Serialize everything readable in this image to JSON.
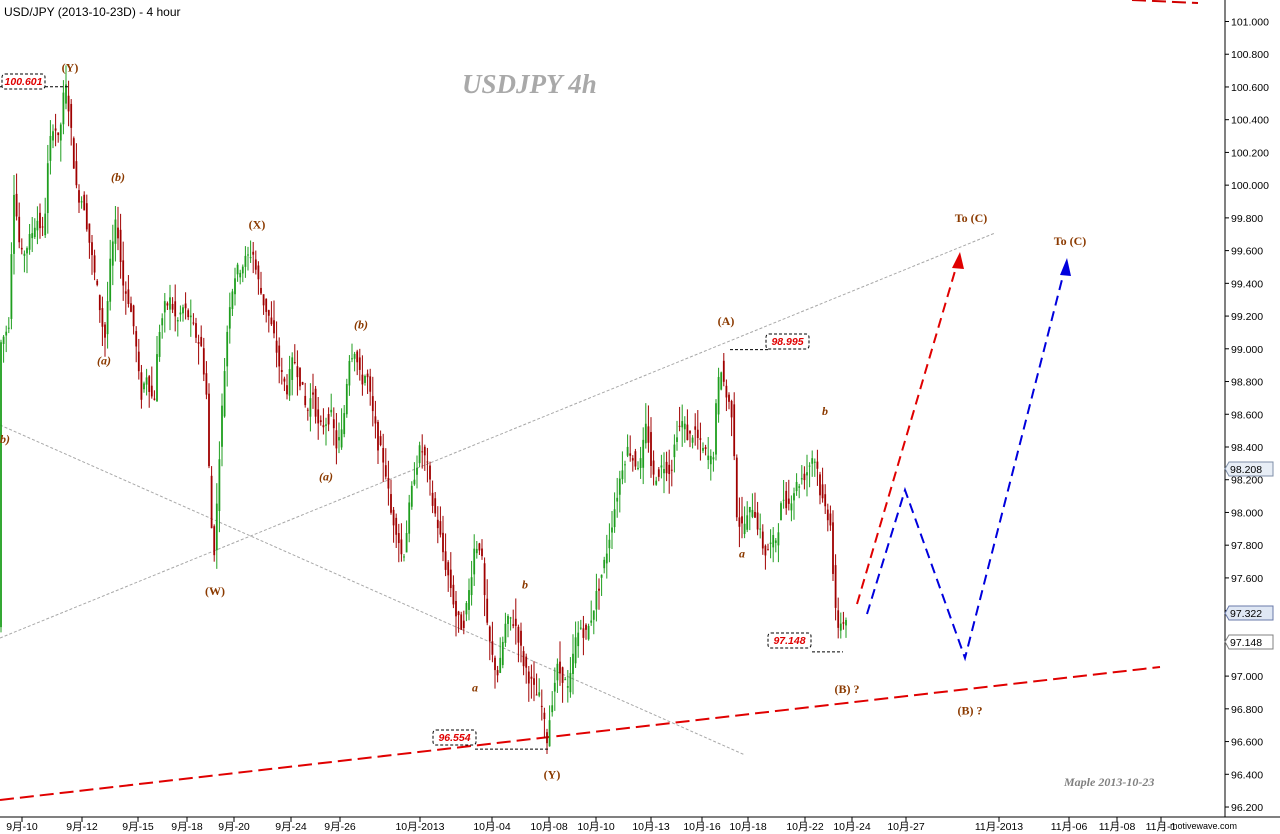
{
  "chart_data": {
    "type": "candlestick",
    "title": "USD/JPY (2013-10-23D) - 4 hour",
    "watermark": "USDJPY  4h",
    "signature": "Maple  2013-10-23",
    "source": "motivewave.com",
    "y_axis": {
      "range": [
        96.1,
        101.15
      ],
      "position": "right",
      "ticks": [
        "101.000",
        "100.800",
        "100.600",
        "100.400",
        "100.200",
        "100.000",
        "99.800",
        "99.600",
        "99.400",
        "99.200",
        "99.000",
        "98.800",
        "98.600",
        "98.400",
        "98.200",
        "98.000",
        "97.800",
        "97.600",
        "97.400",
        "97.200",
        "97.000",
        "96.800",
        "96.600",
        "96.400",
        "96.200"
      ],
      "current_price": "98.208",
      "last_close": "97.322",
      "marked_low": "97.148"
    },
    "x_axis": {
      "ticks": [
        "9月-10",
        "9月-12",
        "9月-15",
        "9月-18",
        "9月-20",
        "9月-24",
        "9月-26",
        "10月-2013",
        "10月-04",
        "10月-08",
        "10月-10",
        "10月-13",
        "10月-16",
        "10月-18",
        "10月-22",
        "10月-24",
        "10月-27",
        "11月-2013",
        "11月-06",
        "11月-08",
        "11月-1"
      ]
    },
    "colors": {
      "up": "#1f9e1f",
      "down": "#a00000",
      "forecast_red": "#e00000",
      "forecast_blue": "#0000dd",
      "wave_label": "#8b3a00",
      "level_text": "#e00000"
    },
    "price_path": [
      [
        0,
        99.0
      ],
      [
        10,
        99.15
      ],
      [
        15,
        100.0
      ],
      [
        22,
        99.55
      ],
      [
        30,
        99.65
      ],
      [
        38,
        99.8
      ],
      [
        45,
        99.7
      ],
      [
        50,
        100.2
      ],
      [
        55,
        100.4
      ],
      [
        60,
        100.25
      ],
      [
        65,
        100.55
      ],
      [
        68,
        100.601
      ],
      [
        72,
        100.35
      ],
      [
        78,
        99.95
      ],
      [
        85,
        99.9
      ],
      [
        92,
        99.6
      ],
      [
        100,
        99.3
      ],
      [
        106,
        99.05
      ],
      [
        112,
        99.55
      ],
      [
        118,
        99.8
      ],
      [
        124,
        99.4
      ],
      [
        130,
        99.3
      ],
      [
        136,
        99.1
      ],
      [
        142,
        98.7
      ],
      [
        148,
        98.85
      ],
      [
        155,
        98.65
      ],
      [
        160,
        99.1
      ],
      [
        166,
        99.25
      ],
      [
        172,
        99.3
      ],
      [
        178,
        99.15
      ],
      [
        184,
        99.25
      ],
      [
        190,
        99.2
      ],
      [
        196,
        99.1
      ],
      [
        203,
        99.0
      ],
      [
        208,
        98.7
      ],
      [
        212,
        97.95
      ],
      [
        216,
        97.75
      ],
      [
        220,
        98.3
      ],
      [
        225,
        98.8
      ],
      [
        230,
        99.25
      ],
      [
        236,
        99.45
      ],
      [
        242,
        99.5
      ],
      [
        248,
        99.55
      ],
      [
        254,
        99.6
      ],
      [
        258,
        99.45
      ],
      [
        264,
        99.3
      ],
      [
        270,
        99.2
      ],
      [
        276,
        99.05
      ],
      [
        282,
        98.85
      ],
      [
        288,
        98.75
      ],
      [
        295,
        98.95
      ],
      [
        302,
        98.8
      ],
      [
        308,
        98.6
      ],
      [
        314,
        98.75
      ],
      [
        320,
        98.5
      ],
      [
        326,
        98.55
      ],
      [
        332,
        98.6
      ],
      [
        338,
        98.4
      ],
      [
        344,
        98.5
      ],
      [
        350,
        98.95
      ],
      [
        356,
        99.0
      ],
      [
        362,
        98.8
      ],
      [
        368,
        98.85
      ],
      [
        374,
        98.6
      ],
      [
        380,
        98.4
      ],
      [
        386,
        98.3
      ],
      [
        392,
        98.0
      ],
      [
        398,
        97.9
      ],
      [
        404,
        97.7
      ],
      [
        410,
        98.0
      ],
      [
        416,
        98.25
      ],
      [
        422,
        98.4
      ],
      [
        428,
        98.3
      ],
      [
        434,
        98.05
      ],
      [
        440,
        97.9
      ],
      [
        446,
        97.7
      ],
      [
        452,
        97.55
      ],
      [
        458,
        97.35
      ],
      [
        464,
        97.3
      ],
      [
        470,
        97.5
      ],
      [
        476,
        97.8
      ],
      [
        482,
        97.8
      ],
      [
        488,
        97.3
      ],
      [
        494,
        97.1
      ],
      [
        500,
        97.0
      ],
      [
        506,
        97.3
      ],
      [
        512,
        97.35
      ],
      [
        518,
        97.3
      ],
      [
        524,
        97.1
      ],
      [
        530,
        97.0
      ],
      [
        536,
        96.9
      ],
      [
        542,
        96.85
      ],
      [
        548,
        96.6
      ],
      [
        552,
        96.8
      ],
      [
        558,
        97.05
      ],
      [
        564,
        97.0
      ],
      [
        570,
        96.9
      ],
      [
        576,
        97.2
      ],
      [
        582,
        97.3
      ],
      [
        588,
        97.25
      ],
      [
        594,
        97.4
      ],
      [
        600,
        97.55
      ],
      [
        606,
        97.7
      ],
      [
        612,
        97.9
      ],
      [
        618,
        98.1
      ],
      [
        624,
        98.3
      ],
      [
        630,
        98.4
      ],
      [
        636,
        98.3
      ],
      [
        642,
        98.3
      ],
      [
        648,
        98.55
      ],
      [
        654,
        98.2
      ],
      [
        660,
        98.25
      ],
      [
        666,
        98.3
      ],
      [
        672,
        98.25
      ],
      [
        678,
        98.5
      ],
      [
        684,
        98.55
      ],
      [
        690,
        98.45
      ],
      [
        696,
        98.5
      ],
      [
        702,
        98.4
      ],
      [
        708,
        98.35
      ],
      [
        714,
        98.3
      ],
      [
        718,
        98.7
      ],
      [
        722,
        98.9
      ],
      [
        728,
        98.7
      ],
      [
        734,
        98.6
      ],
      [
        738,
        98.0
      ],
      [
        742,
        97.9
      ],
      [
        748,
        97.95
      ],
      [
        754,
        98.05
      ],
      [
        760,
        97.9
      ],
      [
        766,
        97.75
      ],
      [
        772,
        97.8
      ],
      [
        778,
        97.85
      ],
      [
        784,
        98.1
      ],
      [
        790,
        98.05
      ],
      [
        796,
        98.15
      ],
      [
        802,
        98.2
      ],
      [
        808,
        98.25
      ],
      [
        814,
        98.35
      ],
      [
        818,
        98.3
      ],
      [
        822,
        98.1
      ],
      [
        828,
        98.0
      ],
      [
        832,
        97.95
      ],
      [
        836,
        97.4
      ],
      [
        840,
        97.3
      ],
      [
        844,
        97.35
      ],
      [
        848,
        97.3
      ]
    ],
    "price_levels": [
      {
        "label": "100.601",
        "price": 100.601
      },
      {
        "label": "98.995",
        "price": 98.995
      },
      {
        "label": "97.148",
        "price": 97.148
      },
      {
        "label": "96.554",
        "price": 96.554
      }
    ],
    "wave_labels": [
      {
        "text": "(Y)",
        "style": "plain",
        "price": 100.72
      },
      {
        "text": "(b)",
        "style": "italic",
        "price": 100.05
      },
      {
        "text": "(a)",
        "style": "italic",
        "price": 98.93
      },
      {
        "text": "(X)",
        "style": "plain",
        "price": 99.76
      },
      {
        "text": "(b)",
        "style": "italic",
        "price": 99.15
      },
      {
        "text": "(a)",
        "style": "italic",
        "price": 98.22
      },
      {
        "text": "(W)",
        "style": "plain",
        "price": 97.52
      },
      {
        "text": "b",
        "style": "italic",
        "price": 97.56
      },
      {
        "text": "a",
        "style": "italic",
        "price": 96.93
      },
      {
        "text": "(Y)",
        "style": "plain",
        "price": 96.4
      },
      {
        "text": "(A)",
        "style": "plain",
        "price": 99.17
      },
      {
        "text": "b",
        "style": "italic",
        "price": 98.62
      },
      {
        "text": "a",
        "style": "italic",
        "price": 97.75
      },
      {
        "text": "(B) ?",
        "style": "plain",
        "price": 96.92
      },
      {
        "text": "To (C)",
        "style": "plain",
        "price": 99.8
      },
      {
        "text": "To (C)",
        "style": "plain",
        "price": 99.66
      },
      {
        "text": "(B) ?",
        "style": "plain",
        "price": 96.79
      },
      {
        "text": "b)",
        "style": "italic",
        "price": 98.45
      }
    ]
  }
}
